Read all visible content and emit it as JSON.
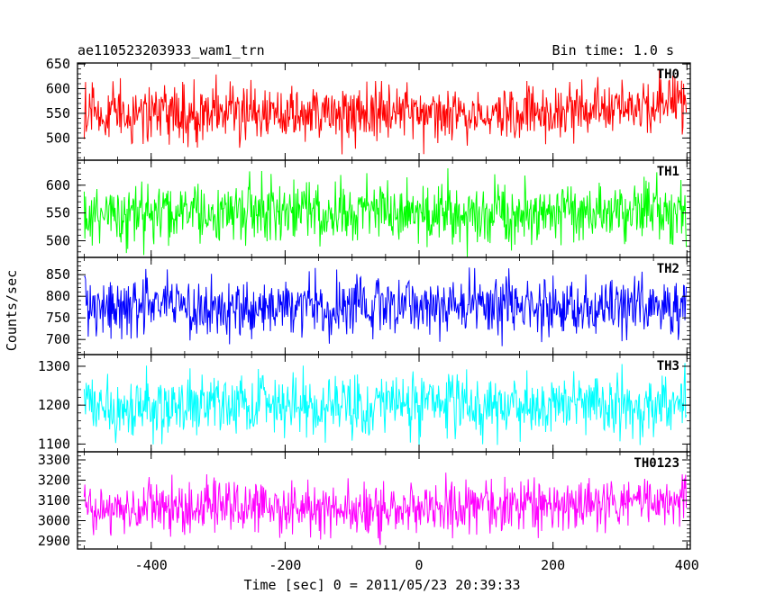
{
  "chart_data": {
    "type": "line",
    "title": "ae110523203933_wam1_trn",
    "bin_time_label": "Bin time: 1.0 s",
    "xlabel": "Time [sec] 0 = 2011/05/23 20:39:33",
    "ylabel": "Counts/sec",
    "xlim": [
      -510,
      405
    ],
    "x_range": [
      -500,
      399
    ],
    "x_ticks": [
      -400,
      -200,
      0,
      200,
      400
    ],
    "panels": [
      {
        "name": "TH0",
        "color": "#ff0000",
        "ylim": [
          455,
          652
        ],
        "yticks": [
          500,
          550,
          600,
          650
        ],
        "trend": [
          [
            -500,
            550
          ],
          [
            0,
            548
          ],
          [
            250,
            555
          ],
          [
            400,
            575
          ]
        ],
        "noise": 30
      },
      {
        "name": "TH1",
        "color": "#00ff00",
        "ylim": [
          470,
          645
        ],
        "yticks": [
          500,
          550,
          600
        ],
        "trend": [
          [
            -500,
            550
          ],
          [
            400,
            552
          ]
        ],
        "noise": 28
      },
      {
        "name": "TH2",
        "color": "#0000ff",
        "ylim": [
          665,
          890
        ],
        "yticks": [
          700,
          750,
          800,
          850
        ],
        "trend": [
          [
            -500,
            778
          ],
          [
            400,
            778
          ]
        ],
        "noise": 35
      },
      {
        "name": "TH3",
        "color": "#00ffff",
        "ylim": [
          1080,
          1330
        ],
        "yticks": [
          1100,
          1200,
          1300
        ],
        "trend": [
          [
            -500,
            1200
          ],
          [
            400,
            1203
          ]
        ],
        "noise": 40
      },
      {
        "name": "TH0123",
        "color": "#ff00ff",
        "ylim": [
          2860,
          3340
        ],
        "yticks": [
          2900,
          3000,
          3100,
          3200,
          3300
        ],
        "trend": [
          [
            -500,
            3060
          ],
          [
            0,
            3060
          ],
          [
            250,
            3075
          ],
          [
            400,
            3120
          ]
        ],
        "noise": 65
      }
    ]
  }
}
